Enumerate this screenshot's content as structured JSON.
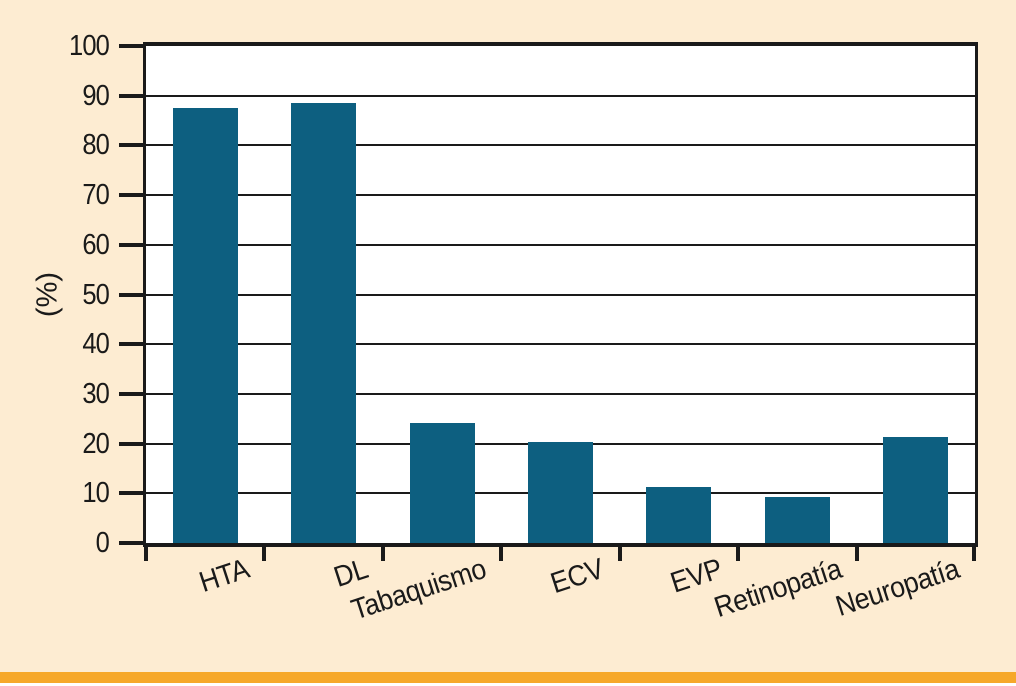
{
  "page": {
    "background_color": "#fdecd2",
    "footer_bar_color": "#f6a82a",
    "text_color": "#1a1a1a"
  },
  "chart_data": {
    "type": "bar",
    "title": "",
    "xlabel": "",
    "ylabel": "(%)",
    "categories": [
      "HTA",
      "DL",
      "Tabaquismo",
      "ECV",
      "EVP",
      "Retinopatía",
      "Neuropatía"
    ],
    "values": [
      87.5,
      88.5,
      24.2,
      20.3,
      11.3,
      9.3,
      21.3
    ],
    "ylim": [
      0,
      100
    ],
    "yticks": [
      0,
      10,
      20,
      30,
      40,
      50,
      60,
      70,
      80,
      90,
      100
    ],
    "grid": true,
    "legend": "none",
    "bar_color": "#0d5f80",
    "axis_color": "#1a1a1a",
    "plot_background": "#ffffff",
    "x_label_rotation_deg": -18
  }
}
